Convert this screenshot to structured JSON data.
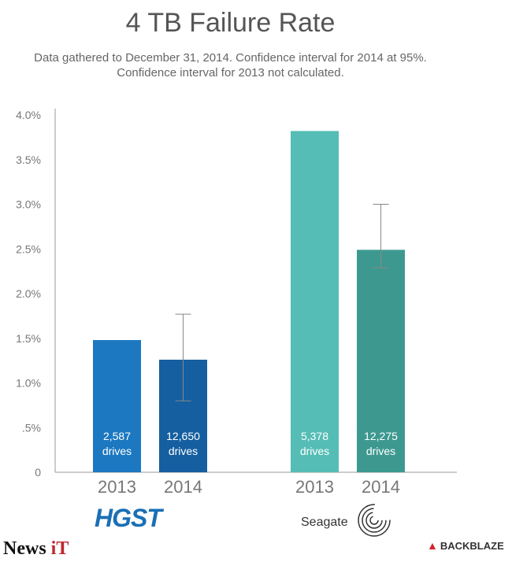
{
  "chart_data": {
    "type": "bar",
    "title": "4 TB Failure Rate",
    "subtitle_lines": [
      "Data gathered to December 31, 2014. Confidence interval for 2014 at 95%.",
      "Confidence interval for 2013 not calculated."
    ],
    "ylim": [
      0,
      4.0
    ],
    "yticks": [
      {
        "value": 0,
        "label": "0"
      },
      {
        "value": 0.5,
        "label": ".5%"
      },
      {
        "value": 1.0,
        "label": "1.0%"
      },
      {
        "value": 1.5,
        "label": "1.5%"
      },
      {
        "value": 2.0,
        "label": "2.0%"
      },
      {
        "value": 2.5,
        "label": "2.5%"
      },
      {
        "value": 3.0,
        "label": "3.0%"
      },
      {
        "value": 3.5,
        "label": "3.5%"
      },
      {
        "value": 4.0,
        "label": "4.0%"
      }
    ],
    "grid": false,
    "groups": [
      {
        "name": "HGST",
        "bars": [
          {
            "year": "2013",
            "value": 1.48,
            "label_line1": "2,587",
            "label_line2": "drives",
            "color": "#1c78c0",
            "ci": null
          },
          {
            "year": "2014",
            "value": 1.26,
            "label_line1": "12,650",
            "label_line2": "drives",
            "color": "#155fa0",
            "ci": [
              0.8,
              1.77
            ]
          }
        ]
      },
      {
        "name": "Seagate",
        "bars": [
          {
            "year": "2013",
            "value": 3.82,
            "label_line1": "5,378",
            "label_line2": "drives",
            "color": "#55bdb5",
            "ci": null
          },
          {
            "year": "2014",
            "value": 2.49,
            "label_line1": "12,275",
            "label_line2": "drives",
            "color": "#3d9990",
            "ci": [
              2.29,
              3.0
            ]
          }
        ]
      }
    ]
  },
  "brands": {
    "hgst": "HGST",
    "seagate": "Seagate",
    "backblaze": "BACKBLAZE",
    "news_prefix": "News ",
    "news_suffix": "iT"
  },
  "colors": {
    "axis": "#999999",
    "errorbar": "#888888",
    "bar_text": "#ffffff"
  }
}
